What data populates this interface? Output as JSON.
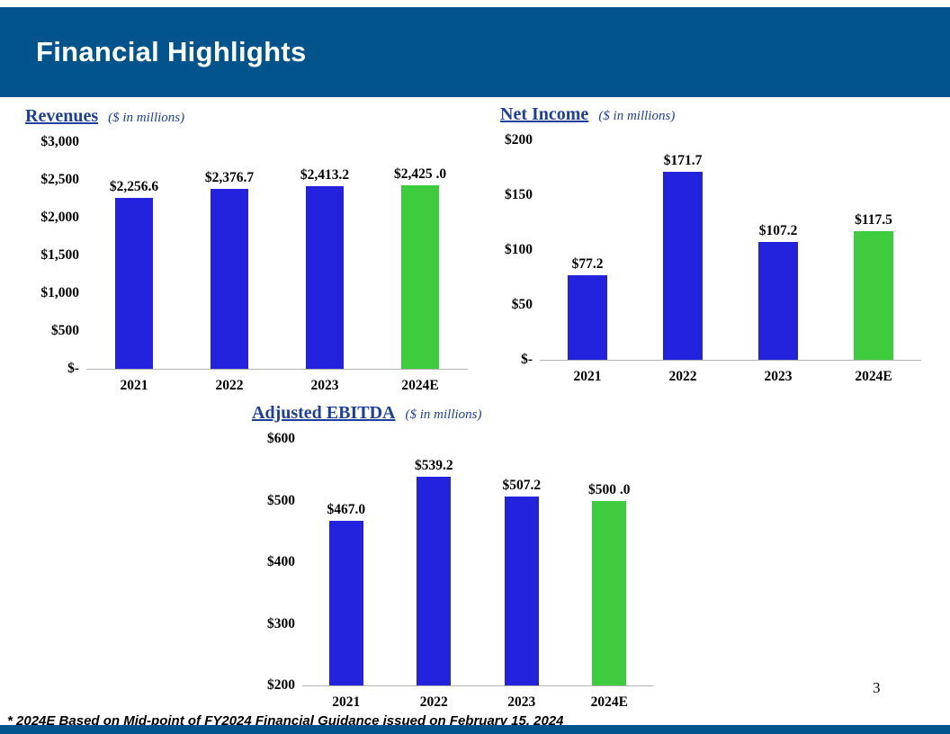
{
  "slide": {
    "title": "Financial Highlights",
    "page_number": "3",
    "footnote": "* 2024E Based on Mid-point of FY2024 Financial Guidance issued on February 15, 2024"
  },
  "colors": {
    "band_blue": "#00538b",
    "chart_title_blue": "#1e3f9d",
    "bar_blue": "#2323dd",
    "bar_green": "#3ecb3e",
    "axis_line_gray": "#b3b3b3"
  },
  "chart_data": [
    {
      "key": "revenues",
      "type": "bar",
      "title": "Revenues",
      "subtitle": "($ in millions)",
      "categories": [
        "2021",
        "2022",
        "2023",
        "2024E"
      ],
      "values": [
        2256.6,
        2376.7,
        2413.2,
        2425.0
      ],
      "labels": [
        "$2,256.6",
        "$2,376.7",
        "$2,413.2",
        "$2,425 .0"
      ],
      "ymin": 0,
      "ymax": 3000,
      "yticks": [
        "$3,000",
        "$2,500",
        "$2,000",
        "$1,500",
        "$1,000",
        "$500",
        "$-"
      ],
      "bar_colors": [
        "#2323dd",
        "#2323dd",
        "#2323dd",
        "#3ecb3e"
      ],
      "grid": false,
      "legend": "none"
    },
    {
      "key": "net_income",
      "type": "bar",
      "title": "Net Income",
      "subtitle": "($ in millions)",
      "categories": [
        "2021",
        "2022",
        "2023",
        "2024E"
      ],
      "values": [
        77.2,
        171.7,
        107.2,
        117.5
      ],
      "labels": [
        "$77.2",
        "$171.7",
        "$107.2",
        "$117.5"
      ],
      "ymin": 0,
      "ymax": 200,
      "yticks": [
        "$200",
        "$150",
        "$100",
        "$50",
        "$-"
      ],
      "bar_colors": [
        "#2323dd",
        "#2323dd",
        "#2323dd",
        "#3ecb3e"
      ],
      "grid": false,
      "legend": "none"
    },
    {
      "key": "adjusted_ebitda",
      "type": "bar",
      "title": "Adjusted EBITDA",
      "subtitle": "($ in millions)",
      "categories": [
        "2021",
        "2022",
        "2023",
        "2024E"
      ],
      "values": [
        467.0,
        539.2,
        507.2,
        500.0
      ],
      "labels": [
        "$467.0",
        "$539.2",
        "$507.2",
        "$500 .0"
      ],
      "ymin": 200,
      "ymax": 600,
      "yticks": [
        "$600",
        "$500",
        "$400",
        "$300",
        "$200"
      ],
      "bar_colors": [
        "#2323dd",
        "#2323dd",
        "#2323dd",
        "#3ecb3e"
      ],
      "grid": false,
      "legend": "none"
    }
  ]
}
